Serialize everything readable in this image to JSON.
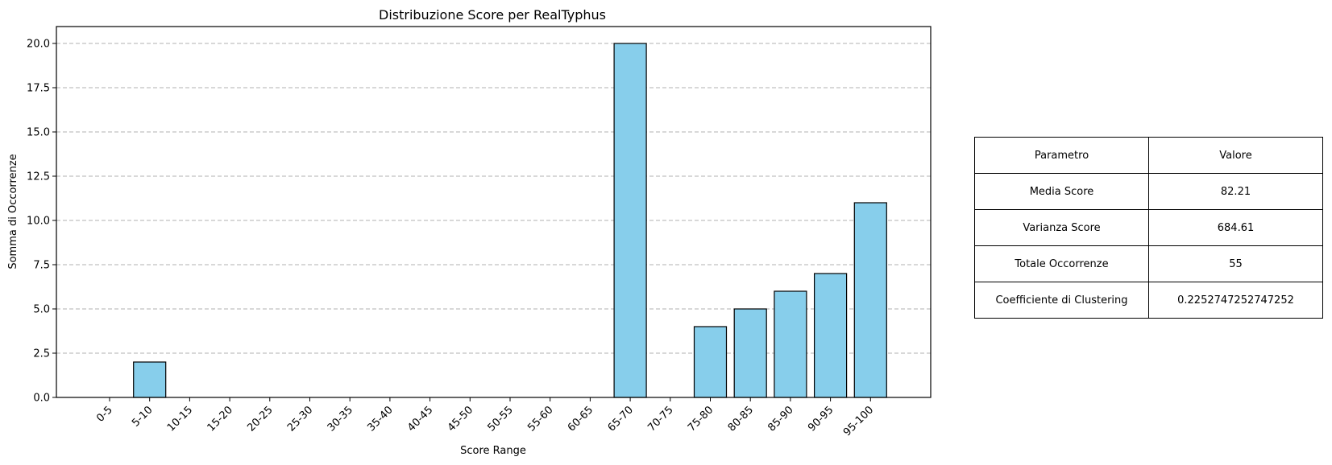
{
  "chart_data": {
    "type": "bar",
    "title": "Distribuzione Score per RealTyphus",
    "xlabel": "Score Range",
    "ylabel": "Somma di Occorrenze",
    "categories": [
      "0-5",
      "5-10",
      "10-15",
      "15-20",
      "20-25",
      "25-30",
      "30-35",
      "35-40",
      "40-45",
      "45-50",
      "50-55",
      "55-60",
      "60-65",
      "65-70",
      "70-75",
      "75-80",
      "80-85",
      "85-90",
      "90-95",
      "95-100"
    ],
    "values": [
      0,
      2,
      0,
      0,
      0,
      0,
      0,
      0,
      0,
      0,
      0,
      0,
      0,
      20,
      0,
      4,
      5,
      6,
      7,
      11
    ],
    "ylim": [
      0,
      21
    ],
    "yticks": [
      "0.0",
      "2.5",
      "5.0",
      "7.5",
      "10.0",
      "12.5",
      "15.0",
      "17.5",
      "20.0"
    ],
    "grid": "y-dashed",
    "bar_color": "#87ceeb",
    "edge_color": "#000000"
  },
  "table": {
    "header": [
      "Parametro",
      "Valore"
    ],
    "rows": [
      [
        "Media Score",
        "82.21"
      ],
      [
        "Varianza Score",
        "684.61"
      ],
      [
        "Totale Occorrenze",
        "55"
      ],
      [
        "Coefficiente di Clustering",
        "0.2252747252747252"
      ]
    ]
  }
}
